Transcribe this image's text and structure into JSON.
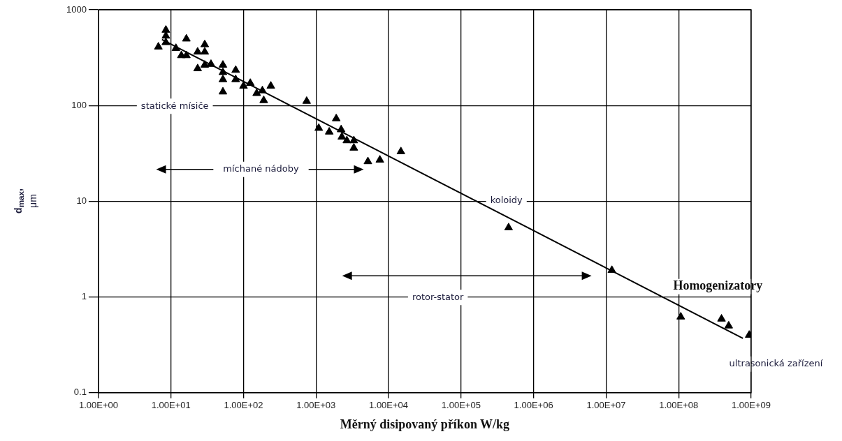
{
  "chart_data": {
    "type": "scatter",
    "xlabel": "Měrný disipovaný příkon W/kg",
    "ylabel": "d$_{max}$,\nμm",
    "log": "xy",
    "grid": true,
    "legend": false,
    "marker": "triangle",
    "xlim": [
      1,
      1000000000
    ],
    "ylim": [
      0.1,
      1000
    ],
    "xticks": [
      {
        "value": 1,
        "label": "1.00E+00"
      },
      {
        "value": 10,
        "label": "1.00E+01"
      },
      {
        "value": 100,
        "label": "1.00E+02"
      },
      {
        "value": 1000,
        "label": "1.00E+03"
      },
      {
        "value": 10000,
        "label": "1.00E+04"
      },
      {
        "value": 100000,
        "label": "1.00E+05"
      },
      {
        "value": 1000000,
        "label": "1.00E+06"
      },
      {
        "value": 10000000,
        "label": "1.00E+07"
      },
      {
        "value": 100000000,
        "label": "1.00E+08"
      },
      {
        "value": 1000000000,
        "label": "1.00E+09"
      }
    ],
    "yticks": [
      0.1,
      1,
      10,
      100,
      1000
    ],
    "series": [
      {
        "color": "#000000",
        "x": [
          6.7,
          8.5,
          8.5,
          8.5,
          11.7,
          13.9,
          16.3,
          16.3,
          23.3,
          23.3,
          29.2,
          29.2,
          29.2,
          35.6,
          52,
          52,
          52,
          52,
          78,
          78,
          100,
          124,
          152,
          182,
          190,
          238,
          743,
          1090,
          1520,
          1900,
          2220,
          2270,
          2660,
          3320,
          3320,
          5190,
          7590,
          14800,
          452000,
          12000000,
          107000000,
          390000000,
          490000000,
          940000000
        ],
        "values": [
          410,
          614,
          533,
          456,
          396,
          333,
          497,
          333,
          363,
          243,
          433,
          363,
          265,
          270,
          265,
          222,
          187,
          139,
          234,
          187,
          160,
          171,
          134,
          143,
          113,
          160,
          111,
          58,
          53,
          73,
          56,
          47,
          43,
          43,
          36,
          26,
          27,
          33,
          5.3,
          1.9,
          0.62,
          0.59,
          0.5,
          0.4
        ]
      },
      {
        "type": "line",
        "color": "#000000",
        "marker": "none",
        "x": [
          7.5,
          770000000
        ],
        "values": [
          489,
          0.37
        ]
      }
    ],
    "annotations": [
      "statické mísiče",
      "míchané nádoby",
      "koloidy",
      "rotor-stator",
      "Homogenizatory",
      "ultrasonická zařízení"
    ]
  }
}
